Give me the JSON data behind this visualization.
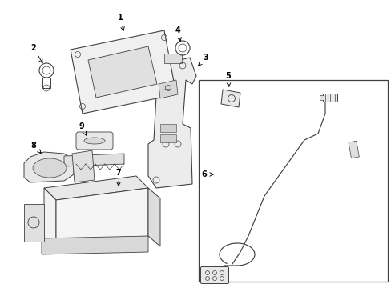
{
  "background_color": "#ffffff",
  "dark_line_color": "#404040",
  "fig_width": 4.89,
  "fig_height": 3.6,
  "dpi": 100
}
